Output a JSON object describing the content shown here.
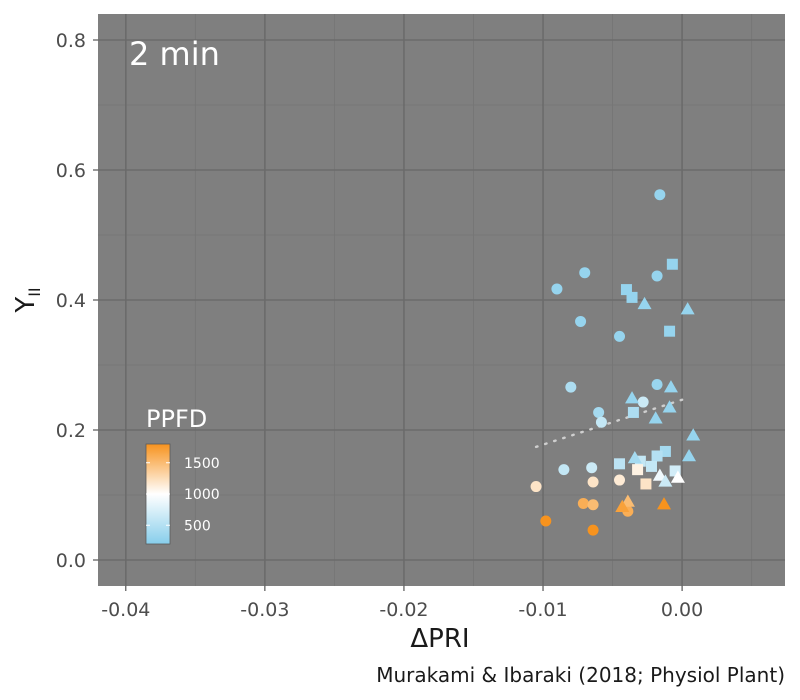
{
  "chart_data": {
    "type": "scatter",
    "panel_label": "2 min",
    "xlabel": "ΔPRI",
    "ylabel_main": "Y",
    "ylabel_sub": "II",
    "caption": "Murakami & Ibaraki (2018; Physiol Plant)",
    "xlim": [
      -0.042,
      0.0074
    ],
    "ylim": [
      -0.04,
      0.84
    ],
    "x_ticks": [
      {
        "value": -0.04,
        "label": "-0.04"
      },
      {
        "value": -0.03,
        "label": "-0.03"
      },
      {
        "value": -0.02,
        "label": "-0.02"
      },
      {
        "value": -0.01,
        "label": "-0.01"
      },
      {
        "value": 0.0,
        "label": "0.00"
      }
    ],
    "y_ticks": [
      {
        "value": 0.0,
        "label": "0.0"
      },
      {
        "value": 0.2,
        "label": "0.2"
      },
      {
        "value": 0.4,
        "label": "0.4"
      },
      {
        "value": 0.6,
        "label": "0.6"
      },
      {
        "value": 0.8,
        "label": "0.8"
      }
    ],
    "grid": true,
    "colors": {
      "panel_bg": "#7f7f7f",
      "grid_major": "#6b6b6b",
      "grid_minor": "#757575",
      "low": "#87ceeb",
      "mid": "#ffffff",
      "high": "#f7931e",
      "trend": "#cfcfcf"
    },
    "legend": {
      "title": "PPFD",
      "placement": "left-bottom",
      "range": [
        200,
        1800
      ],
      "ticks": [
        {
          "value": 500,
          "label": "500"
        },
        {
          "value": 1000,
          "label": "1000"
        },
        {
          "value": 1500,
          "label": "1500"
        }
      ]
    },
    "trend_line": {
      "style": "dotted",
      "x": [
        -0.0105,
        0.0005
      ],
      "y": [
        0.174,
        0.25
      ]
    },
    "points": [
      {
        "x": -0.0016,
        "y": 0.562,
        "shape": "circle",
        "ppfd": 300
      },
      {
        "x": -0.007,
        "y": 0.442,
        "shape": "circle",
        "ppfd": 300
      },
      {
        "x": -0.009,
        "y": 0.417,
        "shape": "circle",
        "ppfd": 300
      },
      {
        "x": -0.0018,
        "y": 0.437,
        "shape": "circle",
        "ppfd": 300
      },
      {
        "x": -0.0073,
        "y": 0.367,
        "shape": "circle",
        "ppfd": 300
      },
      {
        "x": -0.0045,
        "y": 0.344,
        "shape": "circle",
        "ppfd": 300
      },
      {
        "x": -0.008,
        "y": 0.266,
        "shape": "circle",
        "ppfd": 450
      },
      {
        "x": -0.0018,
        "y": 0.27,
        "shape": "circle",
        "ppfd": 320
      },
      {
        "x": -0.0028,
        "y": 0.243,
        "shape": "circle",
        "ppfd": 650
      },
      {
        "x": -0.006,
        "y": 0.227,
        "shape": "circle",
        "ppfd": 400
      },
      {
        "x": -0.0058,
        "y": 0.212,
        "shape": "circle",
        "ppfd": 600
      },
      {
        "x": -0.0085,
        "y": 0.139,
        "shape": "circle",
        "ppfd": 600
      },
      {
        "x": -0.0065,
        "y": 0.142,
        "shape": "circle",
        "ppfd": 650
      },
      {
        "x": -0.0105,
        "y": 0.113,
        "shape": "circle",
        "ppfd": 1200
      },
      {
        "x": -0.0064,
        "y": 0.12,
        "shape": "circle",
        "ppfd": 1200
      },
      {
        "x": -0.0045,
        "y": 0.123,
        "shape": "circle",
        "ppfd": 1150
      },
      {
        "x": -0.0071,
        "y": 0.087,
        "shape": "circle",
        "ppfd": 1600
      },
      {
        "x": -0.0064,
        "y": 0.085,
        "shape": "circle",
        "ppfd": 1500
      },
      {
        "x": -0.0039,
        "y": 0.075,
        "shape": "circle",
        "ppfd": 1600
      },
      {
        "x": -0.0098,
        "y": 0.06,
        "shape": "circle",
        "ppfd": 1800
      },
      {
        "x": -0.0064,
        "y": 0.046,
        "shape": "circle",
        "ppfd": 1800
      },
      {
        "x": -0.0007,
        "y": 0.455,
        "shape": "square",
        "ppfd": 300
      },
      {
        "x": -0.004,
        "y": 0.416,
        "shape": "square",
        "ppfd": 300
      },
      {
        "x": -0.0036,
        "y": 0.404,
        "shape": "square",
        "ppfd": 300
      },
      {
        "x": -0.0009,
        "y": 0.352,
        "shape": "square",
        "ppfd": 300
      },
      {
        "x": -0.0035,
        "y": 0.227,
        "shape": "square",
        "ppfd": 450
      },
      {
        "x": -0.0012,
        "y": 0.167,
        "shape": "square",
        "ppfd": 400
      },
      {
        "x": -0.0018,
        "y": 0.16,
        "shape": "square",
        "ppfd": 500
      },
      {
        "x": -0.003,
        "y": 0.152,
        "shape": "square",
        "ppfd": 600
      },
      {
        "x": -0.0045,
        "y": 0.148,
        "shape": "square",
        "ppfd": 550
      },
      {
        "x": -0.0022,
        "y": 0.144,
        "shape": "square",
        "ppfd": 600
      },
      {
        "x": -0.0032,
        "y": 0.139,
        "shape": "square",
        "ppfd": 1100
      },
      {
        "x": -0.0005,
        "y": 0.137,
        "shape": "square",
        "ppfd": 700
      },
      {
        "x": -0.0026,
        "y": 0.117,
        "shape": "square",
        "ppfd": 1200
      },
      {
        "x": -0.0027,
        "y": 0.394,
        "shape": "triangle",
        "ppfd": 300
      },
      {
        "x": 0.0004,
        "y": 0.386,
        "shape": "triangle",
        "ppfd": 300
      },
      {
        "x": -0.0008,
        "y": 0.266,
        "shape": "triangle",
        "ppfd": 300
      },
      {
        "x": -0.0036,
        "y": 0.249,
        "shape": "triangle",
        "ppfd": 300
      },
      {
        "x": -0.0009,
        "y": 0.235,
        "shape": "triangle",
        "ppfd": 300
      },
      {
        "x": -0.0019,
        "y": 0.218,
        "shape": "triangle",
        "ppfd": 300
      },
      {
        "x": 0.0008,
        "y": 0.192,
        "shape": "triangle",
        "ppfd": 300
      },
      {
        "x": -0.0034,
        "y": 0.157,
        "shape": "triangle",
        "ppfd": 400
      },
      {
        "x": 0.0005,
        "y": 0.16,
        "shape": "triangle",
        "ppfd": 300
      },
      {
        "x": -0.0016,
        "y": 0.13,
        "shape": "triangle",
        "ppfd": 900
      },
      {
        "x": -0.0003,
        "y": 0.127,
        "shape": "triangle",
        "ppfd": 1000
      },
      {
        "x": -0.0012,
        "y": 0.121,
        "shape": "triangle",
        "ppfd": 650
      },
      {
        "x": -0.0039,
        "y": 0.09,
        "shape": "triangle",
        "ppfd": 1500
      },
      {
        "x": -0.0043,
        "y": 0.082,
        "shape": "triangle",
        "ppfd": 1700
      },
      {
        "x": -0.0013,
        "y": 0.086,
        "shape": "triangle",
        "ppfd": 1800
      }
    ]
  }
}
